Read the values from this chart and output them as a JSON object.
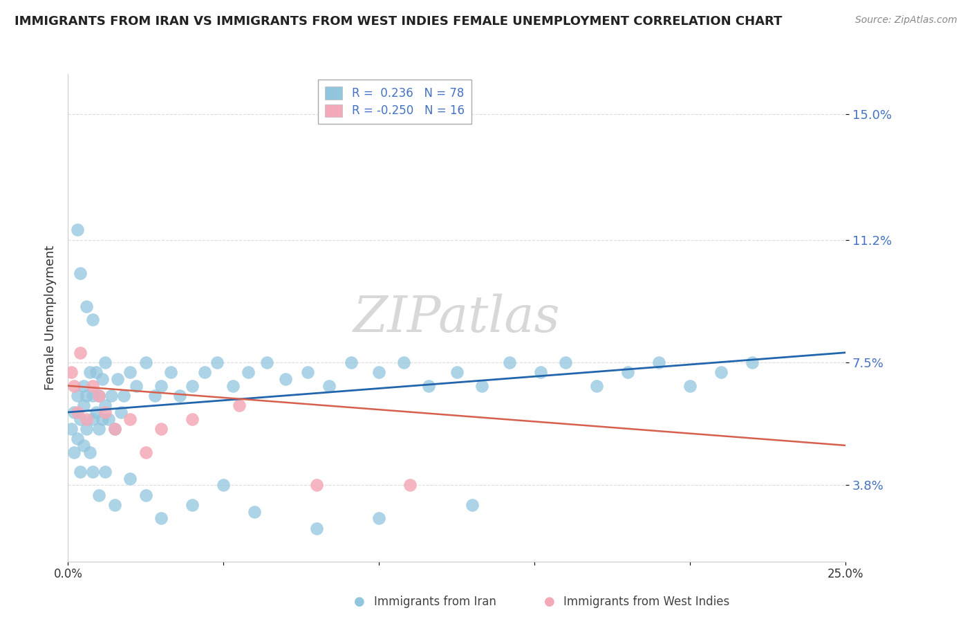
{
  "title": "IMMIGRANTS FROM IRAN VS IMMIGRANTS FROM WEST INDIES FEMALE UNEMPLOYMENT CORRELATION CHART",
  "source": "Source: ZipAtlas.com",
  "ylabel": "Female Unemployment",
  "xmin": 0.0,
  "xmax": 0.25,
  "ymin": 0.015,
  "ymax": 0.162,
  "yticks": [
    0.038,
    0.075,
    0.112,
    0.15
  ],
  "ytick_labels": [
    "3.8%",
    "7.5%",
    "11.2%",
    "15.0%"
  ],
  "xticks": [
    0.0,
    0.05,
    0.1,
    0.15,
    0.2,
    0.25
  ],
  "xtick_labels": [
    "0.0%",
    "",
    "",
    "",
    "",
    "25.0%"
  ],
  "legend_blue_label": "R =  0.236   N = 78",
  "legend_pink_label": "R = -0.250   N = 16",
  "label_iran": "Immigrants from Iran",
  "label_wi": "Immigrants from West Indies",
  "blue_scatter_color": "#92c5de",
  "pink_scatter_color": "#f4a9b8",
  "blue_line_color": "#2166ac",
  "pink_line_color": "#d6604d",
  "legend_text_blue": "#4472c4",
  "legend_text_pink": "#d6604d",
  "title_color": "#222222",
  "source_color": "#888888",
  "watermark_text": "ZIPatlas",
  "watermark_color": "#d8d8d8",
  "grid_color": "#dddddd",
  "spine_color": "#cccccc",
  "iran_x": [
    0.001,
    0.002,
    0.002,
    0.003,
    0.003,
    0.004,
    0.004,
    0.005,
    0.005,
    0.005,
    0.006,
    0.006,
    0.007,
    0.007,
    0.008,
    0.008,
    0.008,
    0.009,
    0.009,
    0.01,
    0.01,
    0.011,
    0.011,
    0.012,
    0.012,
    0.013,
    0.014,
    0.015,
    0.016,
    0.017,
    0.018,
    0.02,
    0.022,
    0.025,
    0.028,
    0.03,
    0.033,
    0.036,
    0.04,
    0.044,
    0.048,
    0.053,
    0.058,
    0.064,
    0.07,
    0.077,
    0.084,
    0.091,
    0.1,
    0.108,
    0.116,
    0.125,
    0.133,
    0.142,
    0.152,
    0.16,
    0.17,
    0.18,
    0.19,
    0.2,
    0.21,
    0.22,
    0.003,
    0.004,
    0.006,
    0.008,
    0.01,
    0.012,
    0.015,
    0.02,
    0.025,
    0.03,
    0.04,
    0.05,
    0.06,
    0.08,
    0.1,
    0.13
  ],
  "iran_y": [
    0.055,
    0.048,
    0.06,
    0.052,
    0.065,
    0.058,
    0.042,
    0.05,
    0.062,
    0.068,
    0.055,
    0.065,
    0.048,
    0.072,
    0.058,
    0.065,
    0.042,
    0.06,
    0.072,
    0.055,
    0.065,
    0.058,
    0.07,
    0.062,
    0.075,
    0.058,
    0.065,
    0.055,
    0.07,
    0.06,
    0.065,
    0.072,
    0.068,
    0.075,
    0.065,
    0.068,
    0.072,
    0.065,
    0.068,
    0.072,
    0.075,
    0.068,
    0.072,
    0.075,
    0.07,
    0.072,
    0.068,
    0.075,
    0.072,
    0.075,
    0.068,
    0.072,
    0.068,
    0.075,
    0.072,
    0.075,
    0.068,
    0.072,
    0.075,
    0.068,
    0.072,
    0.075,
    0.115,
    0.102,
    0.092,
    0.088,
    0.035,
    0.042,
    0.032,
    0.04,
    0.035,
    0.028,
    0.032,
    0.038,
    0.03,
    0.025,
    0.028,
    0.032
  ],
  "wi_x": [
    0.001,
    0.002,
    0.003,
    0.004,
    0.006,
    0.008,
    0.01,
    0.012,
    0.015,
    0.02,
    0.025,
    0.03,
    0.04,
    0.055,
    0.08,
    0.11
  ],
  "wi_y": [
    0.072,
    0.068,
    0.06,
    0.078,
    0.058,
    0.068,
    0.065,
    0.06,
    0.055,
    0.058,
    0.048,
    0.055,
    0.058,
    0.062,
    0.038,
    0.038
  ],
  "blue_line_x0": 0.0,
  "blue_line_y0": 0.06,
  "blue_line_x1": 0.25,
  "blue_line_y1": 0.078,
  "pink_line_x0": 0.0,
  "pink_line_y0": 0.068,
  "pink_line_x1": 0.25,
  "pink_line_y1": 0.05
}
